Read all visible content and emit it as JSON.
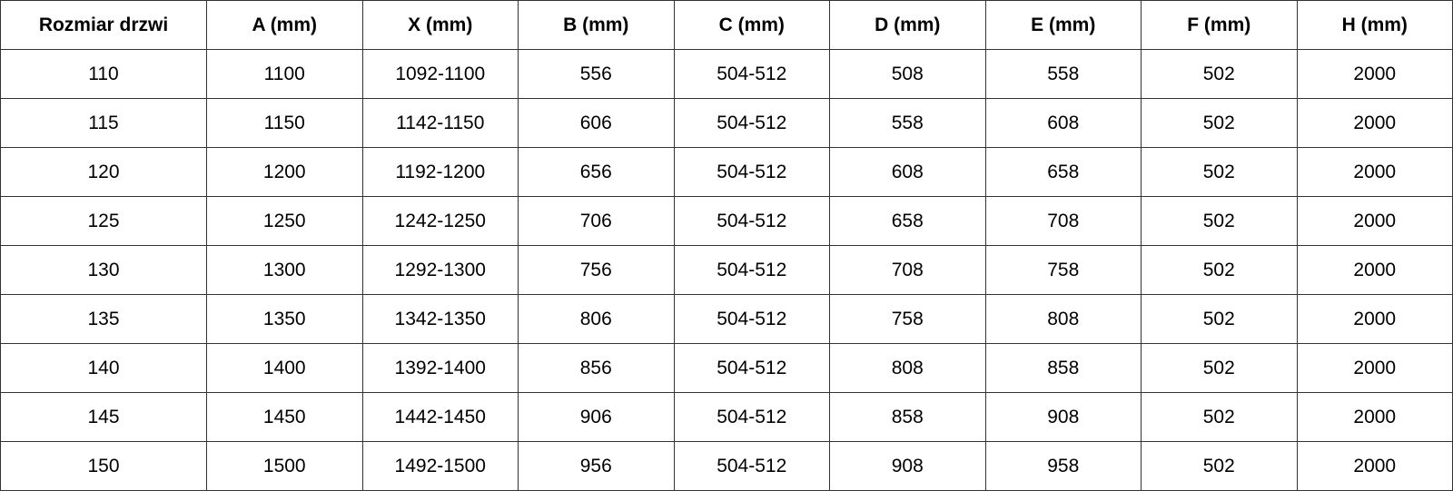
{
  "headers": [
    "Rozmiar drzwi",
    "A (mm)",
    "X (mm)",
    "B (mm)",
    "C (mm)",
    "D (mm)",
    "E (mm)",
    "F (mm)",
    "H (mm)"
  ],
  "rows": [
    [
      "110",
      "1100",
      "1092-1100",
      "556",
      "504-512",
      "508",
      "558",
      "502",
      "2000"
    ],
    [
      "115",
      "1150",
      "1142-1150",
      "606",
      "504-512",
      "558",
      "608",
      "502",
      "2000"
    ],
    [
      "120",
      "1200",
      "1192-1200",
      "656",
      "504-512",
      "608",
      "658",
      "502",
      "2000"
    ],
    [
      "125",
      "1250",
      "1242-1250",
      "706",
      "504-512",
      "658",
      "708",
      "502",
      "2000"
    ],
    [
      "130",
      "1300",
      "1292-1300",
      "756",
      "504-512",
      "708",
      "758",
      "502",
      "2000"
    ],
    [
      "135",
      "1350",
      "1342-1350",
      "806",
      "504-512",
      "758",
      "808",
      "502",
      "2000"
    ],
    [
      "140",
      "1400",
      "1392-1400",
      "856",
      "504-512",
      "808",
      "858",
      "502",
      "2000"
    ],
    [
      "145",
      "1450",
      "1442-1450",
      "906",
      "504-512",
      "858",
      "908",
      "502",
      "2000"
    ],
    [
      "150",
      "1500",
      "1492-1500",
      "956",
      "504-512",
      "908",
      "958",
      "502",
      "2000"
    ]
  ]
}
